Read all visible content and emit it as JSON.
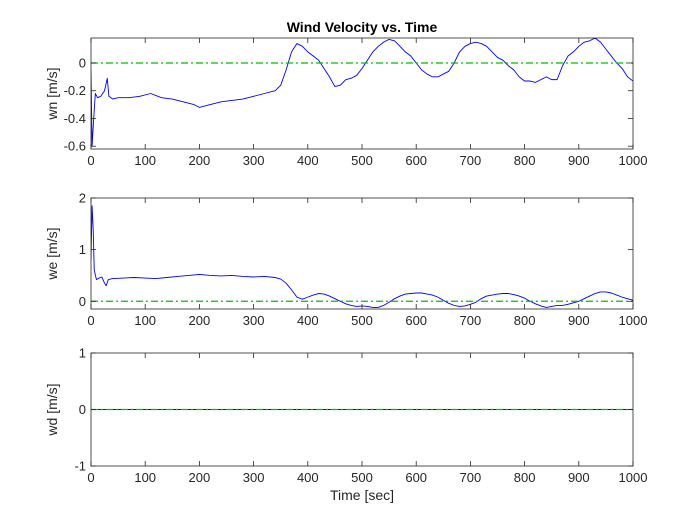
{
  "chart_data": [
    {
      "type": "line",
      "title": "Wind Velocity vs. Time",
      "xlabel": "",
      "ylabel": "wn [m/s]",
      "xlim": [
        0,
        1000
      ],
      "ylim": [
        -0.62,
        0.18
      ],
      "xticks": [
        0,
        100,
        200,
        300,
        400,
        500,
        600,
        700,
        800,
        900,
        1000
      ],
      "yticks": [
        0,
        -0.2,
        -0.4,
        -0.6
      ],
      "ytick_labels": [
        "0",
        "-0.2",
        "-0.4",
        "-0.6"
      ],
      "grid": false,
      "series": [
        {
          "color": "#0000ff",
          "x": [
            0,
            2,
            5,
            8,
            12,
            18,
            25,
            30,
            33,
            40,
            50,
            70,
            90,
            110,
            130,
            150,
            170,
            190,
            200,
            220,
            240,
            260,
            280,
            300,
            320,
            340,
            350,
            360,
            370,
            380,
            390,
            400,
            410,
            420,
            430,
            440,
            450,
            460,
            470,
            480,
            490,
            500,
            510,
            520,
            530,
            540,
            550,
            560,
            570,
            580,
            590,
            600,
            610,
            620,
            630,
            640,
            650,
            660,
            670,
            680,
            690,
            700,
            710,
            720,
            730,
            740,
            750,
            760,
            770,
            780,
            790,
            800,
            810,
            820,
            830,
            840,
            850,
            860,
            870,
            880,
            890,
            900,
            910,
            920,
            930,
            940,
            950,
            960,
            970,
            980,
            990,
            1000
          ],
          "y": [
            -0.05,
            -0.6,
            -0.4,
            -0.22,
            -0.25,
            -0.24,
            -0.2,
            -0.11,
            -0.24,
            -0.26,
            -0.25,
            -0.25,
            -0.24,
            -0.22,
            -0.25,
            -0.26,
            -0.28,
            -0.3,
            -0.32,
            -0.3,
            -0.28,
            -0.27,
            -0.26,
            -0.24,
            -0.22,
            -0.2,
            -0.16,
            -0.05,
            0.08,
            0.14,
            0.12,
            0.08,
            0.05,
            0.02,
            -0.04,
            -0.1,
            -0.17,
            -0.16,
            -0.12,
            -0.11,
            -0.09,
            -0.04,
            0.02,
            0.08,
            0.12,
            0.15,
            0.17,
            0.16,
            0.12,
            0.08,
            0.05,
            0.0,
            -0.05,
            -0.08,
            -0.1,
            -0.1,
            -0.08,
            -0.06,
            0.0,
            0.08,
            0.12,
            0.14,
            0.15,
            0.14,
            0.12,
            0.08,
            0.04,
            0.02,
            -0.02,
            -0.05,
            -0.1,
            -0.13,
            -0.13,
            -0.14,
            -0.12,
            -0.1,
            -0.12,
            -0.12,
            -0.02,
            0.05,
            0.08,
            0.12,
            0.15,
            0.16,
            0.18,
            0.15,
            0.1,
            0.05,
            0.0,
            -0.04,
            -0.1,
            -0.13
          ]
        },
        {
          "color": "#00c000",
          "dash": "dash-dot",
          "x": [
            0,
            1000
          ],
          "y": [
            0,
            0
          ]
        }
      ]
    },
    {
      "type": "line",
      "title": "",
      "xlabel": "",
      "ylabel": "we [m/s]",
      "xlim": [
        0,
        1000
      ],
      "ylim": [
        -0.15,
        2.0
      ],
      "xticks": [
        0,
        100,
        200,
        300,
        400,
        500,
        600,
        700,
        800,
        900,
        1000
      ],
      "yticks": [
        0,
        1,
        2
      ],
      "ytick_labels": [
        "0",
        "1",
        "2"
      ],
      "grid": false,
      "series": [
        {
          "color": "#0000ff",
          "x": [
            0,
            2,
            4,
            6,
            10,
            15,
            20,
            25,
            28,
            32,
            40,
            60,
            80,
            100,
            120,
            140,
            160,
            180,
            200,
            220,
            240,
            260,
            280,
            300,
            320,
            340,
            350,
            360,
            370,
            380,
            390,
            400,
            410,
            420,
            430,
            440,
            450,
            460,
            470,
            480,
            490,
            500,
            510,
            520,
            530,
            540,
            550,
            560,
            570,
            580,
            590,
            600,
            610,
            620,
            630,
            640,
            650,
            660,
            670,
            680,
            690,
            700,
            710,
            720,
            730,
            740,
            750,
            760,
            770,
            780,
            790,
            800,
            810,
            820,
            830,
            840,
            850,
            860,
            870,
            880,
            890,
            900,
            910,
            920,
            930,
            940,
            950,
            960,
            970,
            980,
            990,
            1000
          ],
          "y": [
            0.8,
            1.85,
            1.4,
            0.6,
            0.42,
            0.45,
            0.47,
            0.35,
            0.3,
            0.42,
            0.44,
            0.45,
            0.46,
            0.45,
            0.44,
            0.46,
            0.48,
            0.5,
            0.52,
            0.5,
            0.49,
            0.5,
            0.48,
            0.47,
            0.48,
            0.46,
            0.43,
            0.35,
            0.22,
            0.08,
            0.04,
            0.08,
            0.12,
            0.15,
            0.14,
            0.1,
            0.05,
            0.0,
            -0.05,
            -0.08,
            -0.1,
            -0.09,
            -0.1,
            -0.12,
            -0.12,
            -0.08,
            -0.02,
            0.05,
            0.1,
            0.14,
            0.15,
            0.16,
            0.16,
            0.14,
            0.12,
            0.08,
            0.02,
            -0.04,
            -0.08,
            -0.1,
            -0.09,
            -0.06,
            -0.02,
            0.05,
            0.1,
            0.12,
            0.14,
            0.15,
            0.15,
            0.13,
            0.1,
            0.06,
            0.0,
            -0.05,
            -0.09,
            -0.12,
            -0.1,
            -0.08,
            -0.08,
            -0.06,
            -0.03,
            0.0,
            0.05,
            0.1,
            0.15,
            0.18,
            0.18,
            0.16,
            0.12,
            0.08,
            0.05,
            0.02
          ]
        },
        {
          "color": "#00c000",
          "dash": "dash-dot",
          "x": [
            0,
            1000
          ],
          "y": [
            0,
            0
          ]
        }
      ]
    },
    {
      "type": "line",
      "title": "",
      "xlabel": "Time [sec]",
      "ylabel": "wd [m/s]",
      "xlim": [
        0,
        1000
      ],
      "ylim": [
        -1,
        1
      ],
      "xticks": [
        0,
        100,
        200,
        300,
        400,
        500,
        600,
        700,
        800,
        900,
        1000
      ],
      "yticks": [
        1,
        0,
        -1
      ],
      "ytick_labels": [
        "1",
        "0",
        "-1"
      ],
      "grid": false,
      "series": [
        {
          "color": "#0000ff",
          "x": [
            0,
            1000
          ],
          "y": [
            0,
            0
          ]
        },
        {
          "color": "#00c000",
          "dash": "dash-dot",
          "x": [
            0,
            1000
          ],
          "y": [
            0,
            0
          ]
        }
      ]
    }
  ]
}
